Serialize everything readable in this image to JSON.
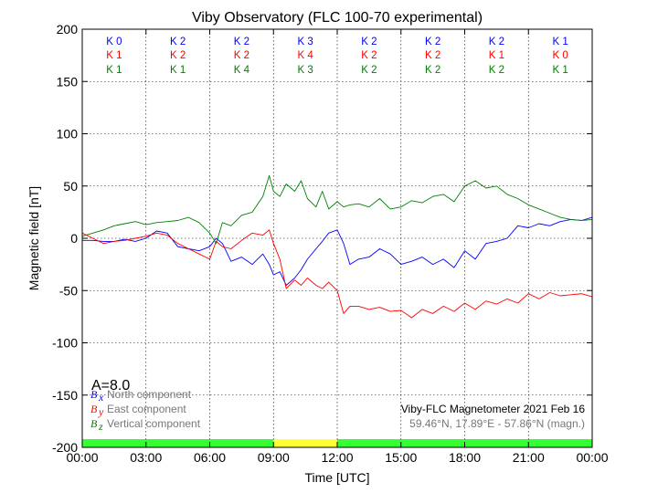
{
  "chart_data": {
    "type": "line",
    "title": "Viby Observatory (FLC 100-70 experimental)",
    "xlabel": "Time [UTC]",
    "ylabel": "Magnetic field [nT]",
    "x_ticks": [
      "00:00",
      "03:00",
      "06:00",
      "09:00",
      "12:00",
      "15:00",
      "18:00",
      "21:00",
      "00:00"
    ],
    "x_range_hours": [
      0,
      24
    ],
    "y_ticks": [
      200,
      150,
      100,
      50,
      0,
      -50,
      -100,
      -150,
      -200
    ],
    "ylim": [
      -200,
      200
    ],
    "grid": true,
    "activity_label": "A=8.0",
    "k_indices": {
      "north": [
        "K 0",
        "K 2",
        "K 2",
        "K 3",
        "K 2",
        "K 2",
        "K 2",
        "K 1"
      ],
      "east": [
        "K 1",
        "K 2",
        "K 2",
        "K 4",
        "K 2",
        "K 2",
        "K 1",
        "K 0"
      ],
      "vertical": [
        "K 1",
        "K 1",
        "K 4",
        "K 3",
        "K 2",
        "K 2",
        "K 2",
        "K 1"
      ]
    },
    "k_colors": {
      "north": "#0000ff",
      "east": "#ff0000",
      "vertical": "#008000"
    },
    "status_bar": [
      {
        "from": 0,
        "to": 9,
        "color": "#33ff33"
      },
      {
        "from": 9,
        "to": 12,
        "color": "#ffff33"
      },
      {
        "from": 12,
        "to": 24,
        "color": "#33ff33"
      }
    ],
    "legend": [
      {
        "symbol": "B",
        "sub": "x",
        "label": "North component",
        "color": "#0000ff"
      },
      {
        "symbol": "B",
        "sub": "y",
        "label": "East component",
        "color": "#ff0000"
      },
      {
        "symbol": "B",
        "sub": "z",
        "label": "Vertical component",
        "color": "#008000"
      }
    ],
    "info_line1": "Viby-FLC Magnetometer 2021 Feb 16",
    "info_line2": "59.46°N, 17.89°E - 57.86°N (magn.)",
    "series": [
      {
        "name": "North component",
        "color": "#0000ff",
        "x": [
          0,
          0.5,
          1,
          1.5,
          2,
          2.5,
          3,
          3.5,
          4,
          4.5,
          5,
          5.5,
          6,
          6.3,
          6.6,
          7,
          7.5,
          8,
          8.5,
          8.8,
          9,
          9.3,
          9.6,
          10,
          10.3,
          10.6,
          11,
          11.3,
          11.6,
          12,
          12.3,
          12.6,
          13,
          13.5,
          14,
          14.5,
          15,
          15.5,
          16,
          16.5,
          17,
          17.5,
          18,
          18.5,
          19,
          19.5,
          20,
          20.5,
          21,
          21.5,
          22,
          22.5,
          23,
          23.5,
          24
        ],
        "y": [
          -2,
          -2,
          -3,
          -3,
          -1,
          -3,
          0,
          7,
          5,
          -8,
          -10,
          -12,
          -8,
          0,
          -5,
          -22,
          -18,
          -25,
          -15,
          -25,
          -35,
          -32,
          -45,
          -38,
          -30,
          -20,
          -10,
          -3,
          5,
          8,
          -5,
          -25,
          -20,
          -18,
          -10,
          -15,
          -25,
          -22,
          -18,
          -25,
          -20,
          -28,
          -12,
          -20,
          -5,
          -3,
          0,
          12,
          10,
          14,
          12,
          16,
          18,
          17,
          20
        ]
      },
      {
        "name": "East component",
        "color": "#ff0000",
        "x": [
          0,
          0.5,
          1,
          1.5,
          2,
          2.5,
          3,
          3.5,
          4,
          4.5,
          5,
          5.5,
          6,
          6.3,
          6.6,
          7,
          7.5,
          8,
          8.5,
          8.8,
          9,
          9.3,
          9.6,
          10,
          10.3,
          10.6,
          11,
          11.3,
          11.6,
          12,
          12.3,
          12.6,
          13,
          13.5,
          14,
          14.5,
          15,
          15.5,
          16,
          16.5,
          17,
          17.5,
          18,
          18.5,
          19,
          19.5,
          20,
          20.5,
          21,
          21.5,
          22,
          22.5,
          23,
          23.5,
          24
        ],
        "y": [
          5,
          0,
          -5,
          -3,
          -2,
          0,
          2,
          5,
          3,
          -5,
          -10,
          -15,
          -20,
          -3,
          -8,
          -10,
          -2,
          5,
          3,
          8,
          -5,
          -20,
          -48,
          -40,
          -45,
          -38,
          -45,
          -48,
          -42,
          -50,
          -72,
          -65,
          -65,
          -68,
          -66,
          -70,
          -69,
          -76,
          -68,
          -72,
          -65,
          -70,
          -62,
          -68,
          -60,
          -63,
          -58,
          -62,
          -53,
          -58,
          -52,
          -55,
          -54,
          -53,
          -56
        ]
      },
      {
        "name": "Vertical component",
        "color": "#008000",
        "x": [
          0,
          0.5,
          1,
          1.5,
          2,
          2.5,
          3,
          3.5,
          4,
          4.5,
          5,
          5.5,
          6,
          6.3,
          6.6,
          7,
          7.5,
          8,
          8.5,
          8.8,
          9,
          9.3,
          9.6,
          10,
          10.3,
          10.6,
          11,
          11.3,
          11.6,
          12,
          12.3,
          12.6,
          13,
          13.5,
          14,
          14.5,
          15,
          15.5,
          16,
          16.5,
          17,
          17.5,
          18,
          18.5,
          19,
          19.5,
          20,
          20.5,
          21,
          21.5,
          22,
          22.5,
          23,
          23.5,
          24
        ],
        "y": [
          2,
          5,
          8,
          12,
          14,
          16,
          13,
          15,
          16,
          17,
          20,
          15,
          5,
          -5,
          15,
          12,
          22,
          25,
          40,
          60,
          45,
          40,
          52,
          45,
          55,
          38,
          30,
          45,
          28,
          35,
          30,
          32,
          33,
          30,
          38,
          28,
          30,
          36,
          34,
          40,
          42,
          35,
          50,
          55,
          48,
          50,
          42,
          38,
          32,
          28,
          24,
          20,
          18,
          17,
          18
        ]
      }
    ]
  }
}
